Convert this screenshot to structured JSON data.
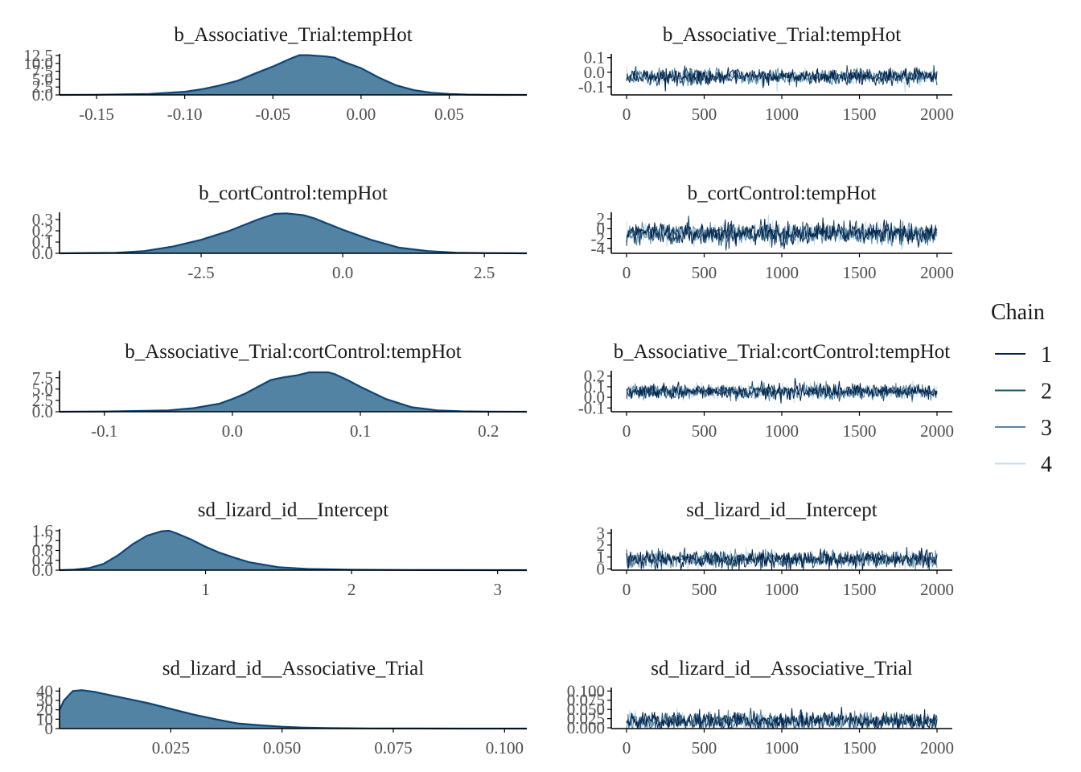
{
  "colors": {
    "density_fill": "#5283a2",
    "density_line": "#0e4477",
    "axis": "#000000",
    "chain": [
      "#03214a",
      "#1d4c6b",
      "#5a86a4",
      "#c7dbe8"
    ]
  },
  "legend": {
    "title": "Chain",
    "items": [
      {
        "label": "1",
        "color": "#03214a"
      },
      {
        "label": "2",
        "color": "#1d4c6b"
      },
      {
        "label": "3",
        "color": "#5a86a4"
      },
      {
        "label": "4",
        "color": "#c7dbe8"
      }
    ]
  },
  "chart_data": [
    {
      "parameter": "b_Associative_Trial:tempHot",
      "density": {
        "type": "area",
        "title": "b_Associative_Trial:tempHot",
        "xlim": [
          -0.171,
          0.094
        ],
        "ylim": [
          0,
          12.5
        ],
        "x_ticks": [
          "-0.15",
          "-0.10",
          "-0.05",
          "0.00",
          "0.05"
        ],
        "y_ticks": [
          "0.0",
          "2.5",
          "5.0",
          "7.5",
          "10.0",
          "12.5"
        ],
        "x": [
          -0.171,
          -0.15,
          -0.12,
          -0.1,
          -0.09,
          -0.08,
          -0.07,
          -0.06,
          -0.05,
          -0.04,
          -0.035,
          -0.03,
          -0.02,
          -0.015,
          -0.01,
          0.0,
          0.01,
          0.02,
          0.03,
          0.04,
          0.05,
          0.06,
          0.07,
          0.094
        ],
        "y": [
          0.0,
          0.05,
          0.3,
          1.0,
          1.8,
          3.0,
          4.5,
          6.8,
          9.0,
          11.5,
          12.6,
          12.6,
          12.2,
          11.8,
          10.5,
          8.5,
          5.5,
          3.0,
          1.5,
          0.7,
          0.3,
          0.1,
          0.03,
          0.0
        ]
      },
      "trace": {
        "type": "line",
        "title": "b_Associative_Trial:tempHot",
        "xlim": [
          0,
          2000
        ],
        "ylim": [
          -0.155,
          0.115
        ],
        "x_ticks": [
          "0",
          "500",
          "1000",
          "1500",
          "2000"
        ],
        "y_ticks": [
          "-0.1",
          "0.0",
          "0.1"
        ],
        "center": -0.03,
        "sd": 0.026
      }
    },
    {
      "parameter": "b_cortControl:tempHot",
      "density": {
        "type": "area",
        "title": "b_cortControl:tempHot",
        "xlim": [
          -5.0,
          3.25
        ],
        "ylim": [
          0,
          0.35
        ],
        "x_ticks": [
          "-2.5",
          "0.0",
          "2.5"
        ],
        "y_ticks": [
          "0.0",
          "0.1",
          "0.2",
          "0.3"
        ],
        "x": [
          -5.0,
          -4.0,
          -3.5,
          -3.0,
          -2.5,
          -2.0,
          -1.5,
          -1.2,
          -1.0,
          -0.7,
          -0.5,
          0.0,
          0.5,
          1.0,
          1.5,
          2.0,
          2.5,
          3.25
        ],
        "y": [
          0.0,
          0.005,
          0.02,
          0.06,
          0.12,
          0.2,
          0.3,
          0.35,
          0.355,
          0.34,
          0.31,
          0.21,
          0.12,
          0.05,
          0.02,
          0.006,
          0.002,
          0.0
        ]
      },
      "trace": {
        "type": "line",
        "title": "b_cortControl:tempHot",
        "xlim": [
          0,
          2000
        ],
        "ylim": [
          -5.0,
          3.0
        ],
        "x_ticks": [
          "0",
          "500",
          "1000",
          "1500",
          "2000"
        ],
        "y_ticks": [
          "-4",
          "-2",
          "0",
          "2"
        ],
        "center": -0.9,
        "sd": 1.1
      }
    },
    {
      "parameter": "b_Associative_Trial:cortControl:tempHot",
      "density": {
        "type": "area",
        "title": "b_Associative_Trial:cortControl:tempHot",
        "xlim": [
          -0.135,
          0.23
        ],
        "ylim": [
          0,
          8.7
        ],
        "x_ticks": [
          "-0.1",
          "0.0",
          "0.1",
          "0.2"
        ],
        "y_ticks": [
          "0.0",
          "2.5",
          "5.0",
          "7.5"
        ],
        "x": [
          -0.135,
          -0.1,
          -0.05,
          -0.03,
          -0.01,
          0.0,
          0.01,
          0.02,
          0.03,
          0.04,
          0.05,
          0.06,
          0.075,
          0.08,
          0.09,
          0.1,
          0.12,
          0.14,
          0.16,
          0.18,
          0.2,
          0.23
        ],
        "y": [
          0.0,
          0.05,
          0.3,
          0.8,
          1.8,
          2.8,
          4.0,
          5.5,
          7.0,
          7.6,
          8.0,
          8.7,
          8.7,
          8.3,
          7.0,
          5.5,
          2.8,
          1.0,
          0.3,
          0.08,
          0.02,
          0.0
        ]
      },
      "trace": {
        "type": "line",
        "title": "b_Associative_Trial:cortControl:tempHot",
        "xlim": [
          0,
          2000
        ],
        "ylim": [
          -0.135,
          0.235
        ],
        "x_ticks": [
          "0",
          "500",
          "1000",
          "1500",
          "2000"
        ],
        "y_ticks": [
          "-0.1",
          "0.0",
          "0.1",
          "0.2"
        ],
        "center": 0.055,
        "sd": 0.035
      }
    },
    {
      "parameter": "sd_lizard_id__Intercept",
      "density": {
        "type": "area",
        "title": "sd_lizard_id__Intercept",
        "xlim": [
          0.0,
          3.2
        ],
        "ylim": [
          0,
          1.6
        ],
        "x_ticks": [
          "1",
          "2",
          "3"
        ],
        "y_ticks": [
          "0.0",
          "0.4",
          "0.8",
          "1.2",
          "1.6"
        ],
        "x": [
          0.0,
          0.1,
          0.2,
          0.3,
          0.4,
          0.5,
          0.6,
          0.7,
          0.75,
          0.8,
          0.9,
          1.0,
          1.1,
          1.2,
          1.3,
          1.5,
          1.7,
          2.0,
          2.5,
          3.2
        ],
        "y": [
          0.0,
          0.02,
          0.08,
          0.25,
          0.6,
          1.05,
          1.4,
          1.58,
          1.6,
          1.5,
          1.25,
          0.95,
          0.7,
          0.5,
          0.32,
          0.12,
          0.05,
          0.015,
          0.003,
          0.0
        ]
      },
      "trace": {
        "type": "line",
        "title": "sd_lizard_id__Intercept",
        "xlim": [
          0,
          2000
        ],
        "ylim": [
          -0.1,
          3.2
        ],
        "x_ticks": [
          "0",
          "500",
          "1000",
          "1500",
          "2000"
        ],
        "y_ticks": [
          "0",
          "1",
          "2",
          "3"
        ],
        "center": 0.8,
        "sd": 0.35
      }
    },
    {
      "parameter": "sd_lizard_id__Associative_Trial",
      "density": {
        "type": "area",
        "title": "sd_lizard_id__Associative_Trial",
        "xlim": [
          0.0,
          0.105
        ],
        "ylim": [
          0,
          42
        ],
        "x_ticks": [
          "0.025",
          "0.050",
          "0.075",
          "0.100"
        ],
        "y_ticks": [
          "0",
          "10",
          "20",
          "30",
          "40"
        ],
        "x": [
          0.0,
          0.001,
          0.003,
          0.005,
          0.008,
          0.012,
          0.016,
          0.02,
          0.025,
          0.03,
          0.035,
          0.04,
          0.045,
          0.05,
          0.055,
          0.06,
          0.07,
          0.08,
          0.09,
          0.105
        ],
        "y": [
          20.0,
          30.0,
          40.0,
          41.0,
          39.0,
          35.0,
          31.0,
          27.0,
          21.0,
          15.0,
          10.0,
          5.5,
          3.5,
          2.0,
          1.0,
          0.5,
          0.2,
          0.05,
          0.02,
          0.0
        ]
      },
      "trace": {
        "type": "line",
        "title": "sd_lizard_id__Associative_Trial",
        "xlim": [
          0,
          2000
        ],
        "ylim": [
          -0.002,
          0.105
        ],
        "x_ticks": [
          "0",
          "500",
          "1000",
          "1500",
          "2000"
        ],
        "y_ticks": [
          "0.000",
          "0.025",
          "0.050",
          "0.075",
          "0.100"
        ],
        "center": 0.018,
        "sd": 0.012
      }
    }
  ]
}
